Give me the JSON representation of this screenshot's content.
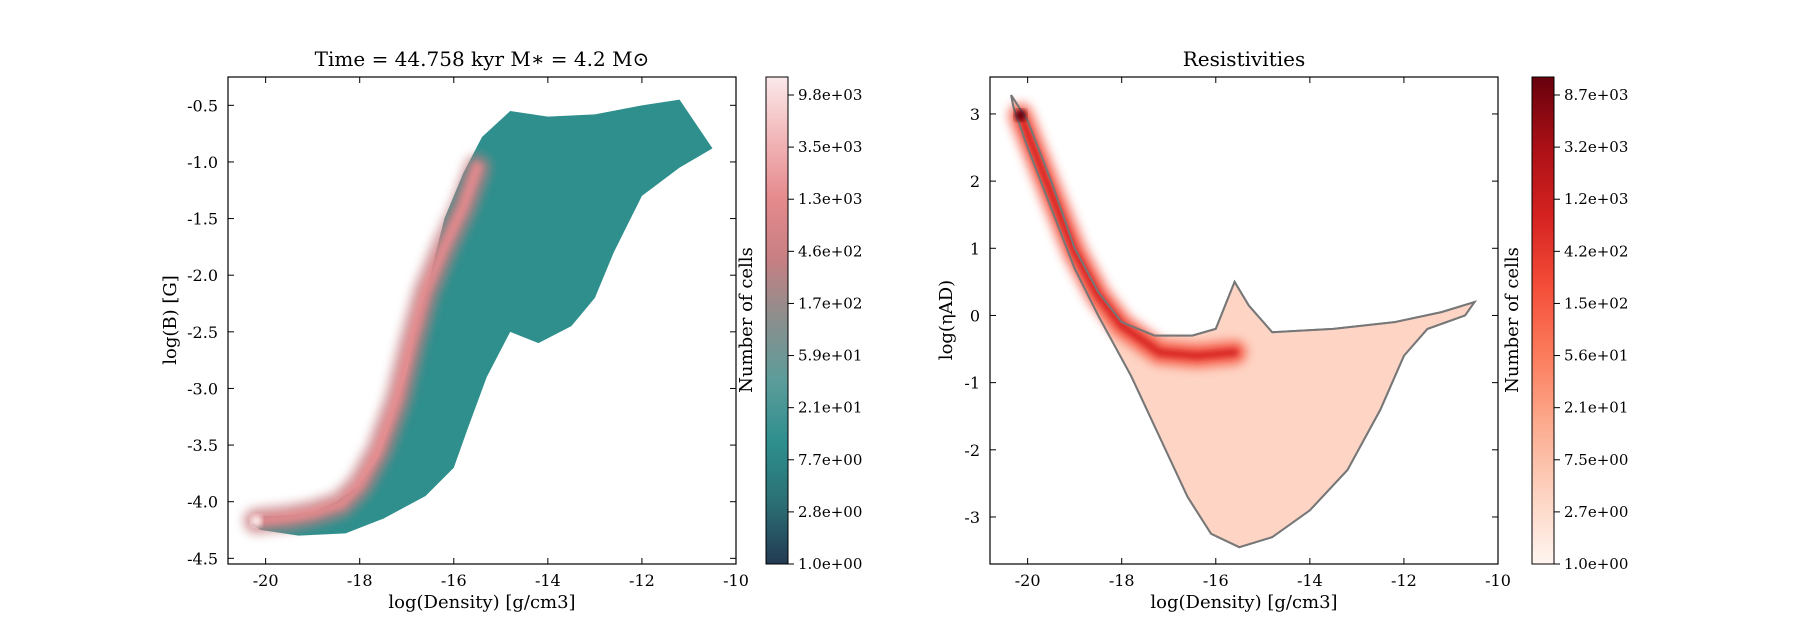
{
  "figure": {
    "charts": [
      {
        "id": "left",
        "title": "Time = 44.758 kyr    M∗ = 4.2 M⊙",
        "xlabel": "log(Density) [g/cm3]",
        "ylabel": "log(B) [G]",
        "colorbar_label": "Number of cells",
        "colormap": [
          "#223a52",
          "#2b6f74",
          "#2e8f8d",
          "#5b9c9a",
          "#8a8f8e",
          "#c77f83",
          "#e58a8d",
          "#f2b7b9",
          "#fbe9ea"
        ],
        "colorbar_ticks": [
          "1.0e+00",
          "2.8e+00",
          "7.7e+00",
          "2.1e+01",
          "5.9e+01",
          "1.7e+02",
          "4.6e+02",
          "1.3e+03",
          "3.5e+03",
          "9.8e+03"
        ]
      },
      {
        "id": "right",
        "title": "Resistivities",
        "xlabel": "log(Density) [g/cm3]",
        "ylabel": "log(ηAD)",
        "colorbar_label": "Number of cells",
        "colormap": [
          "#fff5f0",
          "#fdd3c1",
          "#fcab8f",
          "#fb7c5c",
          "#f44d38",
          "#d52221",
          "#aa1016",
          "#67000d"
        ],
        "contour_color": "#777777",
        "colorbar_ticks": [
          "1.0e+00",
          "2.7e+00",
          "7.5e+00",
          "2.1e+01",
          "5.6e+01",
          "1.5e+02",
          "4.2e+02",
          "1.2e+03",
          "3.2e+03",
          "8.7e+03"
        ]
      }
    ]
  },
  "chart_data": [
    {
      "type": "heatmap",
      "title": "Time = 44.758 kyr    M∗ = 4.2 M⊙",
      "xlabel": "log(Density) [g/cm3]",
      "ylabel": "log(B) [G]",
      "xlim": [
        -20.8,
        -10
      ],
      "ylim": [
        -4.55,
        -0.25
      ],
      "xticks": [
        -20,
        -18,
        -16,
        -14,
        -12,
        -10
      ],
      "yticks": [
        -4.5,
        -4.0,
        -3.5,
        -3.0,
        -2.5,
        -2.0,
        -1.5,
        -1.0,
        -0.5
      ],
      "colorbar": {
        "label": "Number of cells",
        "scale": "log",
        "range": [
          1.0,
          9800
        ]
      },
      "region_outline": [
        [
          -20.3,
          -4.2
        ],
        [
          -20.1,
          -4.13
        ],
        [
          -19.5,
          -4.12
        ],
        [
          -19.0,
          -4.09
        ],
        [
          -18.5,
          -4.0
        ],
        [
          -18.0,
          -3.85
        ],
        [
          -17.6,
          -3.6
        ],
        [
          -17.3,
          -3.25
        ],
        [
          -17.0,
          -2.85
        ],
        [
          -16.8,
          -2.45
        ],
        [
          -16.5,
          -2.0
        ],
        [
          -16.2,
          -1.5
        ],
        [
          -15.8,
          -1.1
        ],
        [
          -15.4,
          -0.78
        ],
        [
          -14.8,
          -0.55
        ],
        [
          -14.0,
          -0.6
        ],
        [
          -13.0,
          -0.58
        ],
        [
          -12.0,
          -0.5
        ],
        [
          -11.2,
          -0.45
        ],
        [
          -10.5,
          -0.88
        ],
        [
          -11.2,
          -1.05
        ],
        [
          -12.0,
          -1.3
        ],
        [
          -12.6,
          -1.8
        ],
        [
          -13.0,
          -2.2
        ],
        [
          -13.5,
          -2.45
        ],
        [
          -14.2,
          -2.6
        ],
        [
          -14.8,
          -2.5
        ],
        [
          -15.3,
          -2.9
        ],
        [
          -15.7,
          -3.35
        ],
        [
          -16.0,
          -3.7
        ],
        [
          -16.6,
          -3.95
        ],
        [
          -17.5,
          -4.15
        ],
        [
          -18.3,
          -4.28
        ],
        [
          -19.3,
          -4.3
        ],
        [
          -20.1,
          -4.25
        ]
      ],
      "high_density_ridge": [
        [
          -20.2,
          -4.17
        ],
        [
          -19.5,
          -4.14
        ],
        [
          -19.0,
          -4.1
        ],
        [
          -18.4,
          -4.02
        ],
        [
          -18.0,
          -3.85
        ],
        [
          -17.6,
          -3.55
        ],
        [
          -17.2,
          -3.1
        ],
        [
          -16.9,
          -2.6
        ],
        [
          -16.6,
          -2.15
        ],
        [
          -16.2,
          -1.75
        ],
        [
          -15.8,
          -1.4
        ],
        [
          -15.5,
          -1.05
        ]
      ],
      "peak": {
        "x": -20.2,
        "y": -4.17,
        "count": 9800
      }
    },
    {
      "type": "heatmap",
      "title": "Resistivities",
      "xlabel": "log(Density) [g/cm3]",
      "ylabel": "log(ηAD)",
      "xlim": [
        -20.8,
        -10
      ],
      "ylim": [
        -3.7,
        3.55
      ],
      "xticks": [
        -20,
        -18,
        -16,
        -14,
        -12,
        -10
      ],
      "yticks": [
        -3,
        -2,
        -1,
        0,
        1,
        2,
        3
      ],
      "colorbar": {
        "label": "Number of cells",
        "scale": "log",
        "range": [
          1.0,
          8700
        ]
      },
      "region_outline": [
        [
          -20.35,
          3.28
        ],
        [
          -20.0,
          2.9
        ],
        [
          -19.5,
          2.0
        ],
        [
          -19.0,
          1.0
        ],
        [
          -18.5,
          0.35
        ],
        [
          -18.0,
          -0.1
        ],
        [
          -17.3,
          -0.3
        ],
        [
          -16.5,
          -0.3
        ],
        [
          -16.0,
          -0.2
        ],
        [
          -15.6,
          0.5
        ],
        [
          -15.3,
          0.15
        ],
        [
          -14.8,
          -0.25
        ],
        [
          -13.5,
          -0.2
        ],
        [
          -12.2,
          -0.1
        ],
        [
          -11.2,
          0.05
        ],
        [
          -10.5,
          0.2
        ],
        [
          -10.7,
          0.0
        ],
        [
          -11.5,
          -0.2
        ],
        [
          -12.0,
          -0.6
        ],
        [
          -12.5,
          -1.4
        ],
        [
          -13.2,
          -2.3
        ],
        [
          -14.0,
          -2.9
        ],
        [
          -14.8,
          -3.3
        ],
        [
          -15.5,
          -3.45
        ],
        [
          -16.1,
          -3.25
        ],
        [
          -16.6,
          -2.7
        ],
        [
          -17.2,
          -1.8
        ],
        [
          -17.8,
          -0.9
        ],
        [
          -18.5,
          0.0
        ],
        [
          -19.0,
          0.7
        ],
        [
          -19.5,
          1.6
        ],
        [
          -20.0,
          2.5
        ],
        [
          -20.3,
          3.1
        ]
      ],
      "high_density_ridge": [
        [
          -20.15,
          2.98
        ],
        [
          -19.6,
          2.0
        ],
        [
          -19.0,
          0.95
        ],
        [
          -18.5,
          0.3
        ],
        [
          -18.0,
          -0.15
        ],
        [
          -17.2,
          -0.55
        ],
        [
          -16.4,
          -0.6
        ],
        [
          -15.6,
          -0.55
        ]
      ],
      "peak": {
        "x": -20.15,
        "y": 2.98,
        "count": 8700
      }
    }
  ]
}
